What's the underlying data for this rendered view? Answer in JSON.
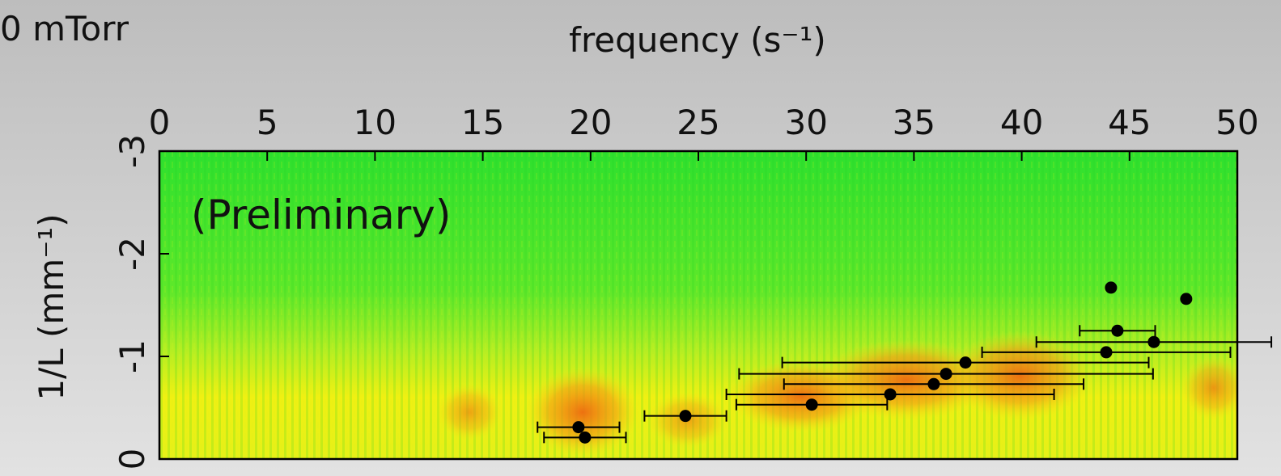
{
  "chart_data": {
    "type": "scatter",
    "corner_label": "0 mTorr",
    "x_label": "frequency (s⁻¹)",
    "y_label": "1/L (mm⁻¹)",
    "annotation": "(Preliminary)",
    "xlim": [
      0,
      50
    ],
    "xticks": [
      0,
      5,
      10,
      15,
      20,
      25,
      30,
      35,
      40,
      45,
      50
    ],
    "ylim": [
      0,
      -3
    ],
    "yticks": [
      -3,
      -2,
      -1,
      0
    ],
    "color": "#000000",
    "x": [
      19.44,
      19.74,
      24.4,
      30.26,
      33.9,
      35.92,
      36.49,
      37.39,
      43.92,
      46.13,
      44.44,
      44.14,
      47.63
    ],
    "values": [
      -0.31,
      -0.21,
      -0.42,
      -0.53,
      -0.63,
      -0.73,
      -0.83,
      -0.94,
      -1.04,
      -1.14,
      -1.25,
      -1.67,
      -1.56
    ],
    "xerr": [
      1.9,
      1.9,
      1.9,
      3.5,
      7.6,
      6.95,
      9.6,
      8.5,
      5.76,
      5.45,
      1.75,
      null,
      null
    ]
  }
}
